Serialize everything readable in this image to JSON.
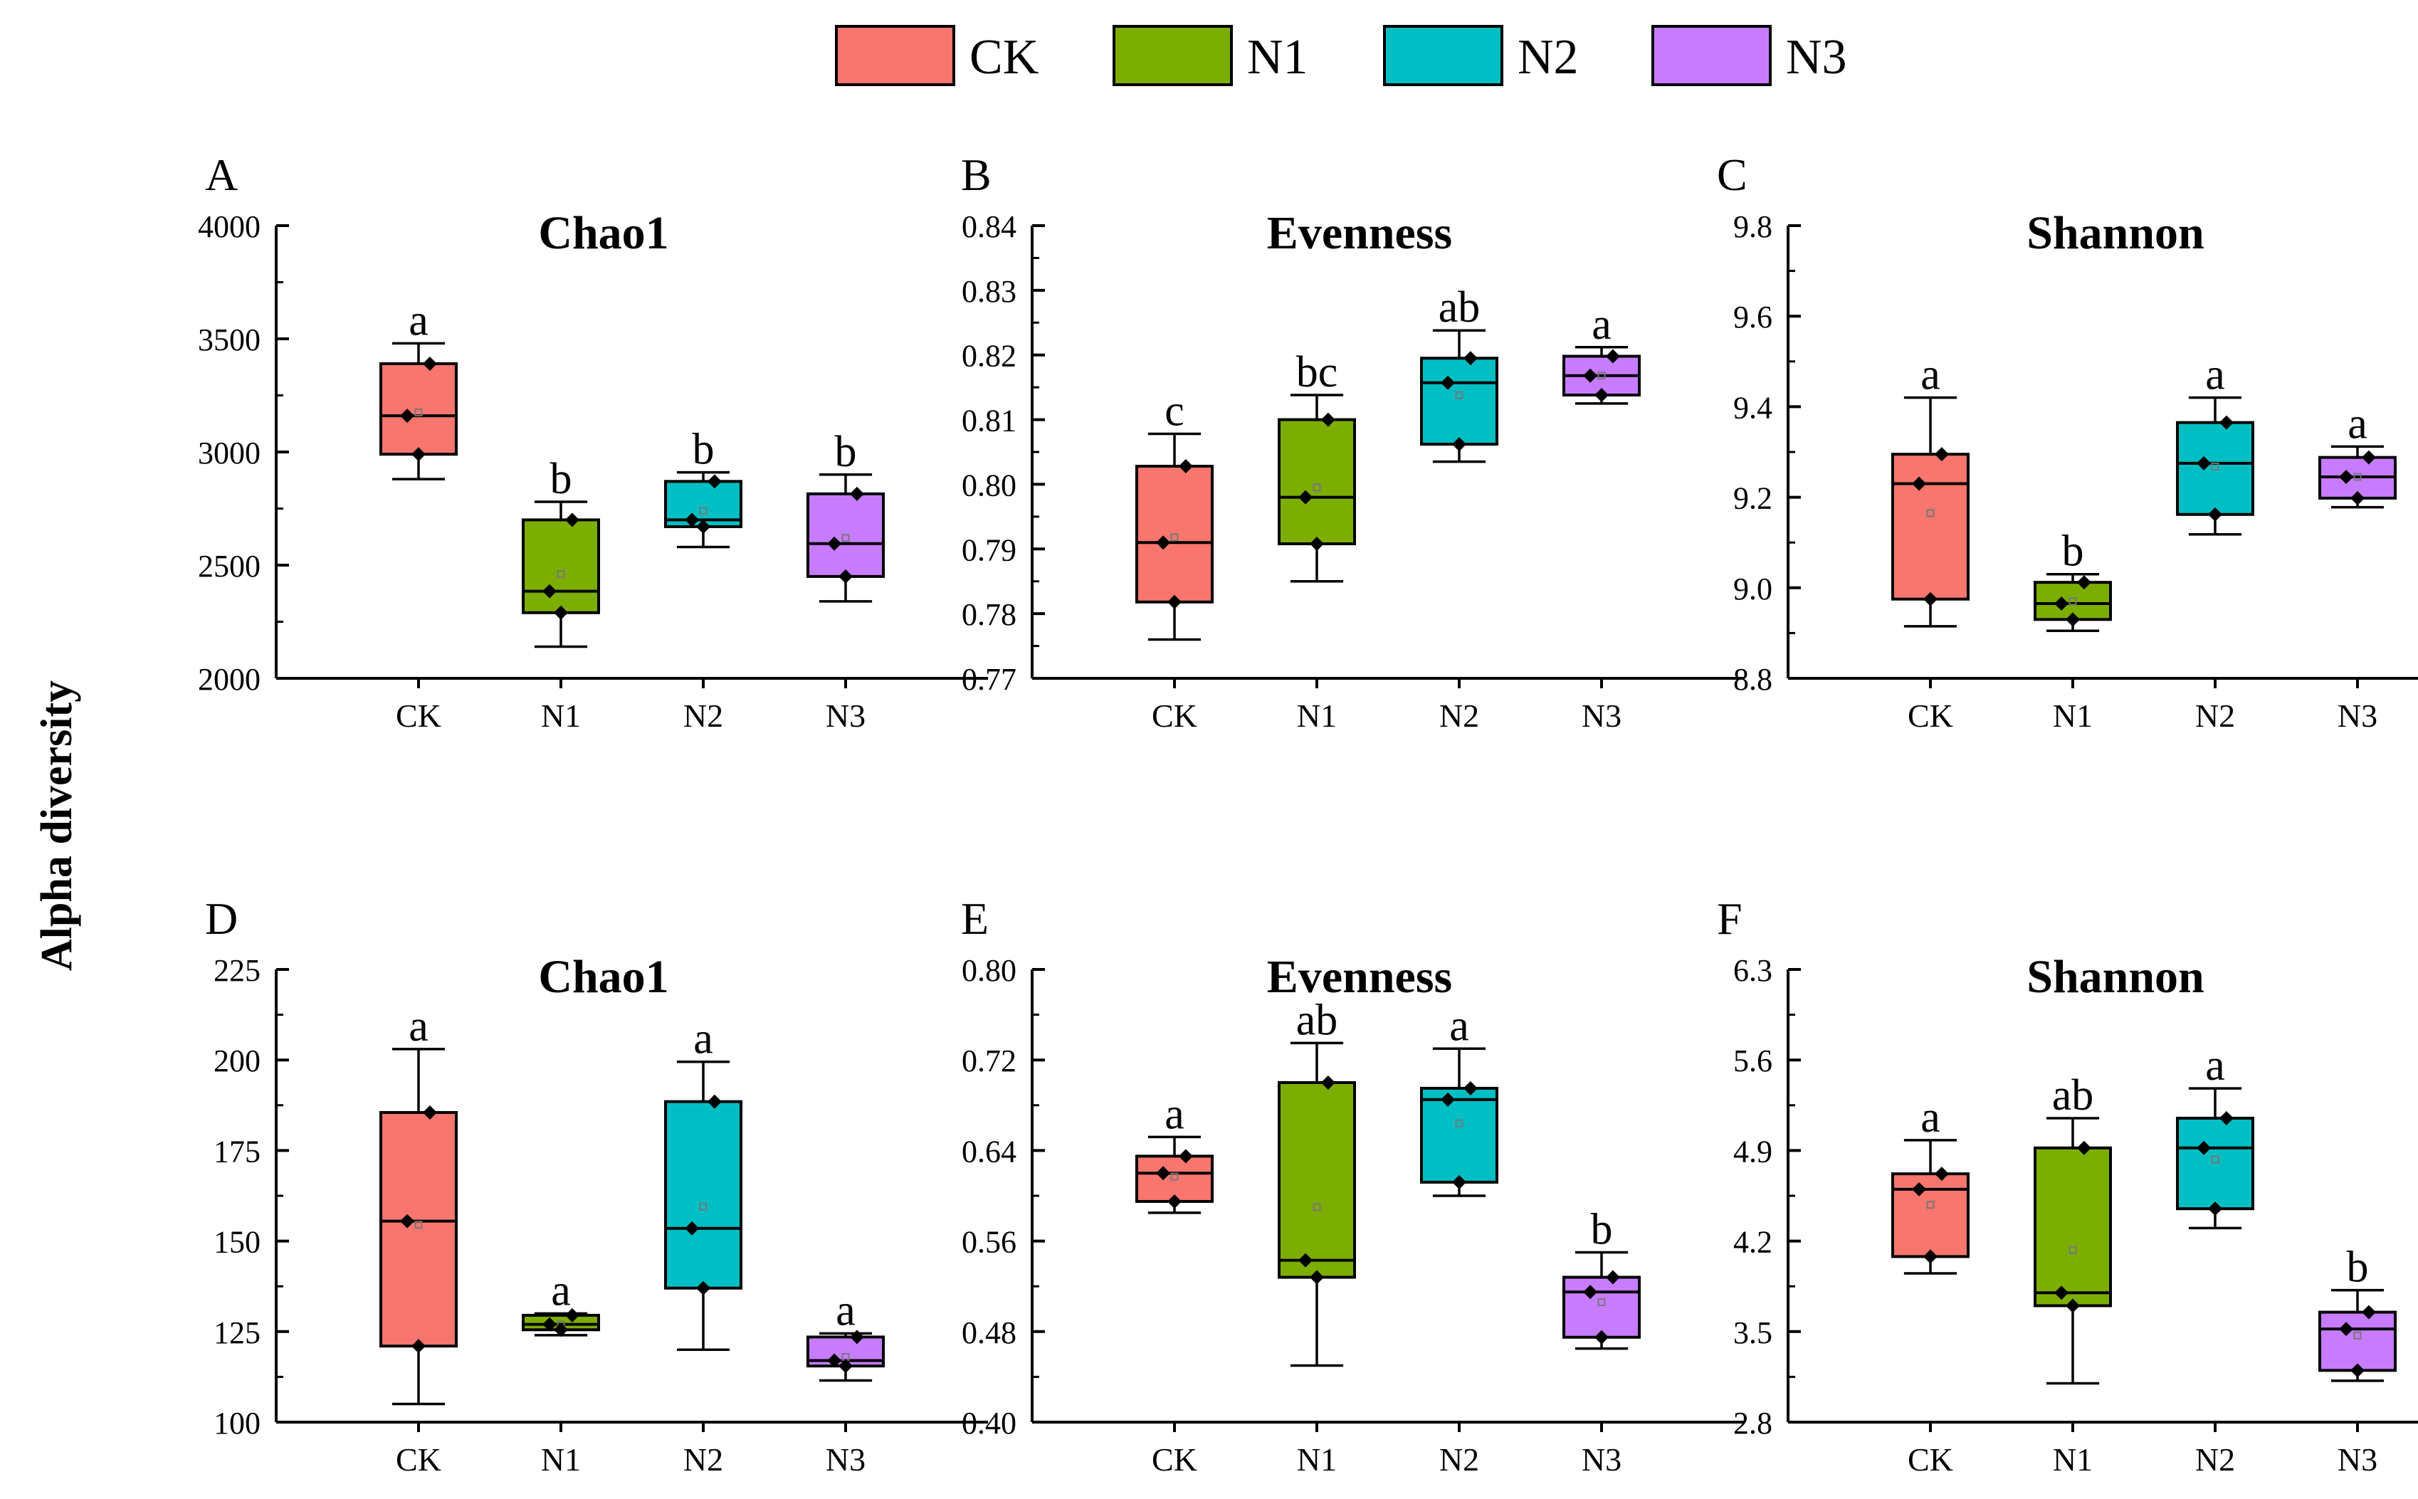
{
  "figure": {
    "ylabel": "Alpha diversity",
    "legend": [
      {
        "name": "CK",
        "color": "#F8766D"
      },
      {
        "name": "N1",
        "color": "#7CAE00"
      },
      {
        "name": "N2",
        "color": "#00BFC4"
      },
      {
        "name": "N3",
        "color": "#C77CFF"
      }
    ]
  },
  "chart_data": [
    {
      "type": "box",
      "panel": "A",
      "title": "Chao1",
      "categories": [
        "CK",
        "N1",
        "N2",
        "N3"
      ],
      "ylim": [
        2000,
        4000
      ],
      "yticks": [
        2000,
        2500,
        3000,
        3500,
        4000
      ],
      "yticklabels": [
        "2000",
        "2500",
        "3000",
        "3500",
        "4000"
      ],
      "boxes": [
        {
          "min": 2880,
          "q1": 2990,
          "median": 3160,
          "q3": 3390,
          "max": 3480,
          "mean": 3175,
          "points": [
            2990,
            3160,
            3390
          ],
          "letter": "a"
        },
        {
          "min": 2140,
          "q1": 2290,
          "median": 2385,
          "q3": 2700,
          "max": 2780,
          "mean": 2460,
          "points": [
            2290,
            2385,
            2700
          ],
          "letter": "b"
        },
        {
          "min": 2580,
          "q1": 2670,
          "median": 2700,
          "q3": 2870,
          "max": 2910,
          "mean": 2740,
          "points": [
            2670,
            2700,
            2870
          ],
          "letter": "b"
        },
        {
          "min": 2340,
          "q1": 2450,
          "median": 2595,
          "q3": 2815,
          "max": 2900,
          "mean": 2620,
          "points": [
            2450,
            2595,
            2815
          ],
          "letter": "b"
        }
      ]
    },
    {
      "type": "box",
      "panel": "B",
      "title": "Evenness",
      "categories": [
        "CK",
        "N1",
        "N2",
        "N3"
      ],
      "ylim": [
        0.77,
        0.84
      ],
      "yticks": [
        0.77,
        0.78,
        0.79,
        0.8,
        0.81,
        0.82,
        0.83,
        0.84
      ],
      "yticklabels": [
        "0.77",
        "0.78",
        "0.79",
        "0.80",
        "0.81",
        "0.82",
        "0.83",
        "0.84"
      ],
      "boxes": [
        {
          "min": 0.776,
          "q1": 0.7818,
          "median": 0.791,
          "q3": 0.8028,
          "max": 0.8078,
          "mean": 0.7918,
          "points": [
            0.7818,
            0.791,
            0.8028
          ],
          "letter": "c"
        },
        {
          "min": 0.785,
          "q1": 0.7908,
          "median": 0.798,
          "q3": 0.81,
          "max": 0.8138,
          "mean": 0.7995,
          "points": [
            0.7908,
            0.798,
            0.81
          ],
          "letter": "bc"
        },
        {
          "min": 0.8035,
          "q1": 0.8062,
          "median": 0.8157,
          "q3": 0.8195,
          "max": 0.8238,
          "mean": 0.8138,
          "points": [
            0.8062,
            0.8157,
            0.8195
          ],
          "letter": "ab"
        },
        {
          "min": 0.8125,
          "q1": 0.8138,
          "median": 0.8168,
          "q3": 0.8198,
          "max": 0.8212,
          "mean": 0.8168,
          "points": [
            0.8138,
            0.8168,
            0.8198
          ],
          "letter": "a"
        }
      ]
    },
    {
      "type": "box",
      "panel": "C",
      "title": "Shannon",
      "categories": [
        "CK",
        "N1",
        "N2",
        "N3"
      ],
      "ylim": [
        8.8,
        9.8
      ],
      "yticks": [
        8.8,
        9.0,
        9.2,
        9.4,
        9.6,
        9.8
      ],
      "yticklabels": [
        "8.8",
        "9.0",
        "9.2",
        "9.4",
        "9.6",
        "9.8"
      ],
      "boxes": [
        {
          "min": 8.915,
          "q1": 8.975,
          "median": 9.23,
          "q3": 9.295,
          "max": 9.42,
          "mean": 9.165,
          "points": [
            8.975,
            9.23,
            9.295
          ],
          "letter": "a"
        },
        {
          "min": 8.905,
          "q1": 8.93,
          "median": 8.965,
          "q3": 9.012,
          "max": 9.03,
          "mean": 8.97,
          "points": [
            8.93,
            8.965,
            9.012
          ],
          "letter": "b"
        },
        {
          "min": 9.118,
          "q1": 9.162,
          "median": 9.275,
          "q3": 9.365,
          "max": 9.42,
          "mean": 9.268,
          "points": [
            9.162,
            9.275,
            9.365
          ],
          "letter": "a"
        },
        {
          "min": 9.178,
          "q1": 9.198,
          "median": 9.245,
          "q3": 9.288,
          "max": 9.312,
          "mean": 9.245,
          "points": [
            9.198,
            9.245,
            9.288
          ],
          "letter": "a"
        }
      ]
    },
    {
      "type": "box",
      "panel": "D",
      "title": "Chao1",
      "categories": [
        "CK",
        "N1",
        "N2",
        "N3"
      ],
      "ylim": [
        100,
        225
      ],
      "yticks": [
        100,
        125,
        150,
        175,
        200,
        225
      ],
      "yticklabels": [
        "100",
        "125",
        "150",
        "175",
        "200",
        "225"
      ],
      "boxes": [
        {
          "min": 105,
          "q1": 121,
          "median": 155.5,
          "q3": 185.5,
          "max": 203,
          "mean": 154.5,
          "points": [
            121,
            155.5,
            185.5
          ],
          "letter": "a"
        },
        {
          "min": 124,
          "q1": 125.5,
          "median": 127,
          "q3": 129.5,
          "max": 130,
          "mean": 127,
          "points": [
            125.5,
            127,
            129.5
          ],
          "letter": "a"
        },
        {
          "min": 120,
          "q1": 137,
          "median": 153.5,
          "q3": 188.5,
          "max": 199.5,
          "mean": 159.5,
          "points": [
            137,
            153.5,
            188.5
          ],
          "letter": "a"
        },
        {
          "min": 111.5,
          "q1": 115.5,
          "median": 117,
          "q3": 123.5,
          "max": 124.5,
          "mean": 118,
          "points": [
            115.5,
            117,
            123.5
          ],
          "letter": "a"
        }
      ]
    },
    {
      "type": "box",
      "panel": "E",
      "title": "Evenness",
      "categories": [
        "CK",
        "N1",
        "N2",
        "N3"
      ],
      "ylim": [
        0.4,
        0.8
      ],
      "yticks": [
        0.4,
        0.48,
        0.56,
        0.64,
        0.72,
        0.8
      ],
      "yticklabels": [
        "0.40",
        "0.48",
        "0.56",
        "0.64",
        "0.72",
        "0.80"
      ],
      "boxes": [
        {
          "min": 0.585,
          "q1": 0.595,
          "median": 0.62,
          "q3": 0.635,
          "max": 0.652,
          "mean": 0.617,
          "points": [
            0.595,
            0.62,
            0.635
          ],
          "letter": "a"
        },
        {
          "min": 0.45,
          "q1": 0.528,
          "median": 0.543,
          "q3": 0.7,
          "max": 0.735,
          "mean": 0.59,
          "points": [
            0.528,
            0.543,
            0.7
          ],
          "letter": "ab"
        },
        {
          "min": 0.6,
          "q1": 0.612,
          "median": 0.685,
          "q3": 0.695,
          "max": 0.73,
          "mean": 0.664,
          "points": [
            0.612,
            0.685,
            0.695
          ],
          "letter": "a"
        },
        {
          "min": 0.465,
          "q1": 0.475,
          "median": 0.515,
          "q3": 0.528,
          "max": 0.55,
          "mean": 0.506,
          "points": [
            0.475,
            0.515,
            0.528
          ],
          "letter": "b"
        }
      ]
    },
    {
      "type": "box",
      "panel": "F",
      "title": "Shannon",
      "categories": [
        "CK",
        "N1",
        "N2",
        "N3"
      ],
      "ylim": [
        2.8,
        6.3
      ],
      "yticks": [
        2.8,
        3.5,
        4.2,
        4.9,
        5.6,
        6.3
      ],
      "yticklabels": [
        "2.8",
        "3.5",
        "4.2",
        "4.9",
        "5.6",
        "6.3"
      ],
      "boxes": [
        {
          "min": 3.95,
          "q1": 4.08,
          "median": 4.6,
          "q3": 4.72,
          "max": 4.98,
          "mean": 4.48,
          "points": [
            4.08,
            4.6,
            4.72
          ],
          "letter": "a"
        },
        {
          "min": 3.1,
          "q1": 3.7,
          "median": 3.8,
          "q3": 4.92,
          "max": 5.15,
          "mean": 4.13,
          "points": [
            3.7,
            3.8,
            4.92
          ],
          "letter": "ab"
        },
        {
          "min": 4.3,
          "q1": 4.45,
          "median": 4.92,
          "q3": 5.15,
          "max": 5.38,
          "mean": 4.83,
          "points": [
            4.45,
            4.92,
            5.15
          ],
          "letter": "a"
        },
        {
          "min": 3.12,
          "q1": 3.2,
          "median": 3.52,
          "q3": 3.65,
          "max": 3.82,
          "mean": 3.47,
          "points": [
            3.2,
            3.52,
            3.65
          ],
          "letter": "b"
        }
      ]
    }
  ]
}
